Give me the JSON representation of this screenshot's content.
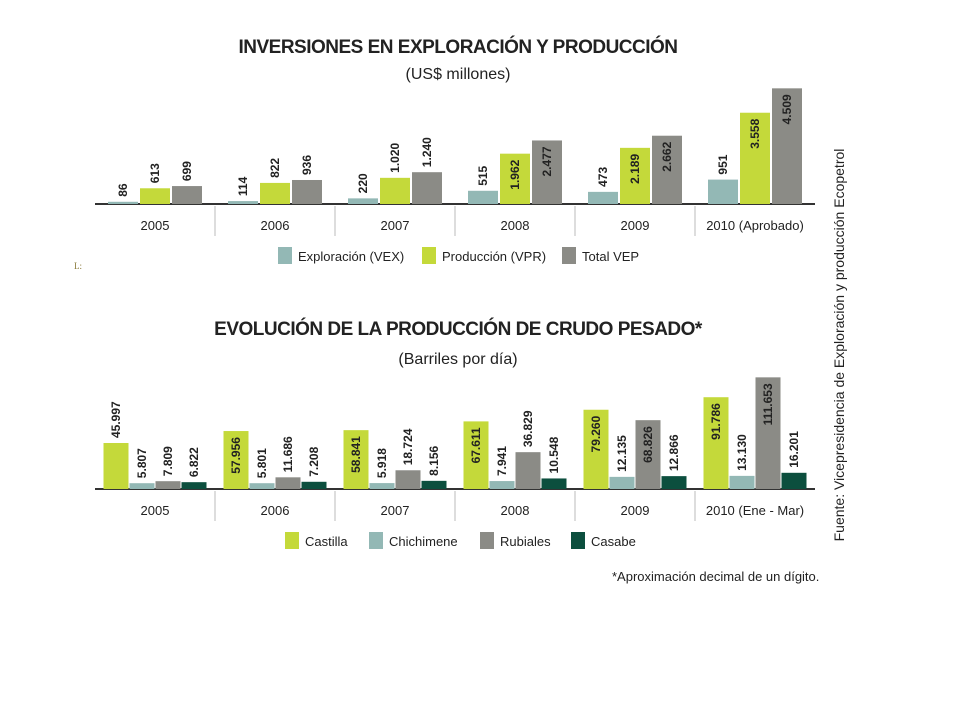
{
  "stray_text": "L:",
  "source_note": "Fuente: Vicepresidencia de Exploración y producción Ecopetrol",
  "footnote": "*Aproximación decimal de un dígito.",
  "colors": {
    "green_light": "#c4d93a",
    "teal_light": "#93b8b5",
    "gray": "#8b8b86",
    "dark_green": "#0c4f3e",
    "axis": "#333333"
  },
  "chart_data": [
    {
      "type": "bar",
      "title": "INVERSIONES EN EXPLORACIÓN Y PRODUCCIÓN",
      "subtitle": "(US$ millones)",
      "categories": [
        "2005",
        "2006",
        "2007",
        "2008",
        "2009",
        "2010 (Aprobado)"
      ],
      "ylim": [
        0,
        4600
      ],
      "grid": false,
      "legend_position": "bottom",
      "series": [
        {
          "name": "Exploración (VEX)",
          "color": "#93b8b5",
          "values": [
            86,
            114,
            220,
            515,
            473,
            951
          ],
          "labels": [
            "86",
            "114",
            "220",
            "515",
            "473",
            "951"
          ]
        },
        {
          "name": "Producción (VPR)",
          "color": "#c4d93a",
          "values": [
            613,
            822,
            1020,
            1962,
            2189,
            3558
          ],
          "labels": [
            "613",
            "822",
            "1.020",
            "1.962",
            "2.189",
            "3.558"
          ]
        },
        {
          "name": "Total VEP",
          "color": "#8b8b86",
          "values": [
            699,
            936,
            1240,
            2477,
            2662,
            4509
          ],
          "labels": [
            "699",
            "936",
            "1.240",
            "2.477",
            "2.662",
            "4.509"
          ]
        }
      ]
    },
    {
      "type": "bar",
      "title": "EVOLUCIÓN DE LA PRODUCCIÓN DE CRUDO PESADO*",
      "subtitle": "(Barriles por día)",
      "categories": [
        "2005",
        "2006",
        "2007",
        "2008",
        "2009",
        "2010 (Ene - Mar)"
      ],
      "ylim": [
        0,
        115000
      ],
      "grid": false,
      "legend_position": "bottom",
      "series": [
        {
          "name": "Castilla",
          "color": "#c4d93a",
          "values": [
            45997,
            57956,
            58841,
            67611,
            79260,
            91786
          ],
          "labels": [
            "45.997",
            "57.956",
            "58.841",
            "67.611",
            "79.260",
            "91.786"
          ]
        },
        {
          "name": "Chichimene",
          "color": "#93b8b5",
          "values": [
            5807,
            5801,
            5918,
            7941,
            12135,
            13130
          ],
          "labels": [
            "5.807",
            "5.801",
            "5.918",
            "7.941",
            "12.135",
            "13.130"
          ]
        },
        {
          "name": "Rubiales",
          "color": "#8b8b86",
          "values": [
            7809,
            11686,
            18724,
            36829,
            68826,
            111653
          ],
          "labels": [
            "7.809",
            "11.686",
            "18.724",
            "36.829",
            "68.826",
            "111.653"
          ]
        },
        {
          "name": "Casabe",
          "color": "#0c4f3e",
          "values": [
            6822,
            7208,
            8156,
            10548,
            12866,
            16201
          ],
          "labels": [
            "6.822",
            "7.208",
            "8.156",
            "10.548",
            "12.866",
            "16.201"
          ]
        }
      ]
    }
  ]
}
